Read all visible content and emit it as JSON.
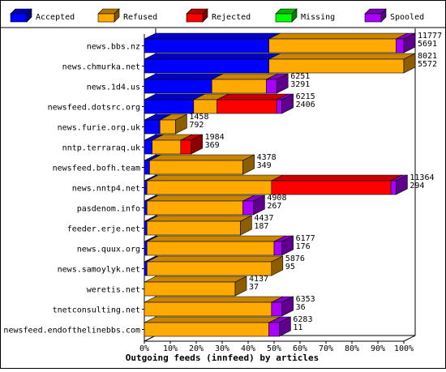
{
  "chart_data": {
    "type": "bar",
    "stacked": true,
    "orientation": "horizontal",
    "three_d": true,
    "title": "",
    "xlabel": "Outgoing feeds (innfeed) by articles",
    "ylabel": "",
    "xlim": [
      0,
      100
    ],
    "x_tick_labels": [
      "0%",
      "10%",
      "20%",
      "30%",
      "40%",
      "50%",
      "60%",
      "70%",
      "80%",
      "90%",
      "100%"
    ],
    "legend_position": "top",
    "categories": [
      "news.bbs.nz",
      "news.chmurka.net",
      "news.1d4.us",
      "newsfeed.dotsrc.org",
      "news.furie.org.uk",
      "nntp.terraraq.uk",
      "newsfeed.bofh.team",
      "news.nntp4.net",
      "pasdenom.info",
      "feeder.erje.net",
      "news.quux.org",
      "news.samoylyk.net",
      "weretis.net",
      "tnetconsulting.net",
      "newsfeed.endofthelinebbs.com"
    ],
    "series": [
      {
        "name": "Accepted",
        "color": "#0000ff",
        "values": [
          48,
          48,
          26,
          19,
          6,
          3,
          2,
          1,
          1,
          1,
          1,
          1,
          0,
          0,
          0
        ]
      },
      {
        "name": "Refused",
        "color": "#ffaa00",
        "values": [
          49,
          52,
          21,
          9,
          6,
          11,
          36,
          48,
          37,
          36,
          49,
          48,
          35,
          49,
          48
        ]
      },
      {
        "name": "Rejected",
        "color": "#ff0000",
        "values": [
          0,
          0,
          0,
          23,
          0,
          4,
          0,
          46,
          0,
          0,
          0,
          0,
          0,
          0,
          0
        ]
      },
      {
        "name": "Missing",
        "color": "#00ff00",
        "values": [
          0,
          0,
          0,
          0,
          0,
          0,
          0,
          0,
          0,
          0,
          0,
          0,
          0,
          0,
          0
        ]
      },
      {
        "name": "Spooled",
        "color": "#aa00ff",
        "values": [
          3,
          0,
          4,
          2,
          0,
          0,
          0,
          2,
          4,
          0,
          3,
          0,
          0,
          4,
          4
        ]
      }
    ],
    "value_labels": [
      [
        "11777",
        "5691"
      ],
      [
        "8021",
        "5572"
      ],
      [
        "6251",
        "3291"
      ],
      [
        "6215",
        "2406"
      ],
      [
        "1458",
        "792"
      ],
      [
        "1984",
        "369"
      ],
      [
        "4378",
        "349"
      ],
      [
        "11364",
        "294"
      ],
      [
        "4908",
        "267"
      ],
      [
        "4437",
        "187"
      ],
      [
        "6177",
        "176"
      ],
      [
        "5876",
        "95"
      ],
      [
        "4137",
        "37"
      ],
      [
        "6353",
        "36"
      ],
      [
        "6283",
        "11"
      ]
    ]
  }
}
